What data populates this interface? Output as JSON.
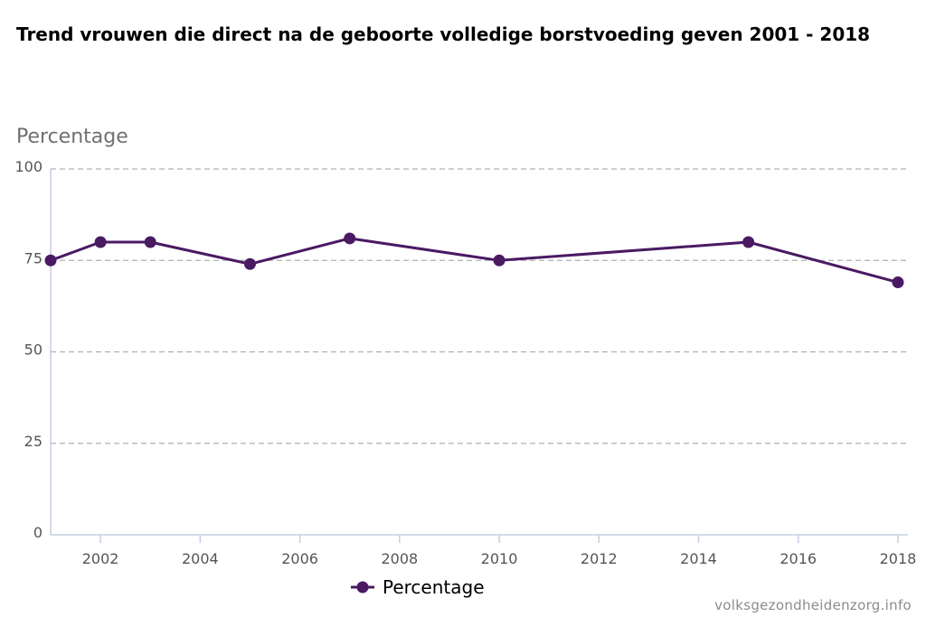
{
  "chart_data": {
    "type": "line",
    "title": "Trend vrouwen die direct na de geboorte volledige borstvoeding geven 2001 - 2018",
    "ylabel": "Percentage",
    "xlabel": "",
    "ylim": [
      0,
      100
    ],
    "xlim": [
      2001,
      2018.2
    ],
    "yticks": [
      0,
      25,
      50,
      75,
      100
    ],
    "xticks": [
      2002,
      2004,
      2006,
      2008,
      2010,
      2012,
      2014,
      2016,
      2018
    ],
    "grid": true,
    "legend_position": "bottom-center",
    "series": [
      {
        "name": "Percentage",
        "color": "#4a1a63",
        "x": [
          2001,
          2002,
          2003,
          2005,
          2007,
          2010,
          2015,
          2018
        ],
        "y": [
          75,
          80,
          80,
          74,
          81,
          75,
          80,
          69
        ]
      }
    ]
  },
  "credit": "volksgezondheidenzorg.info"
}
